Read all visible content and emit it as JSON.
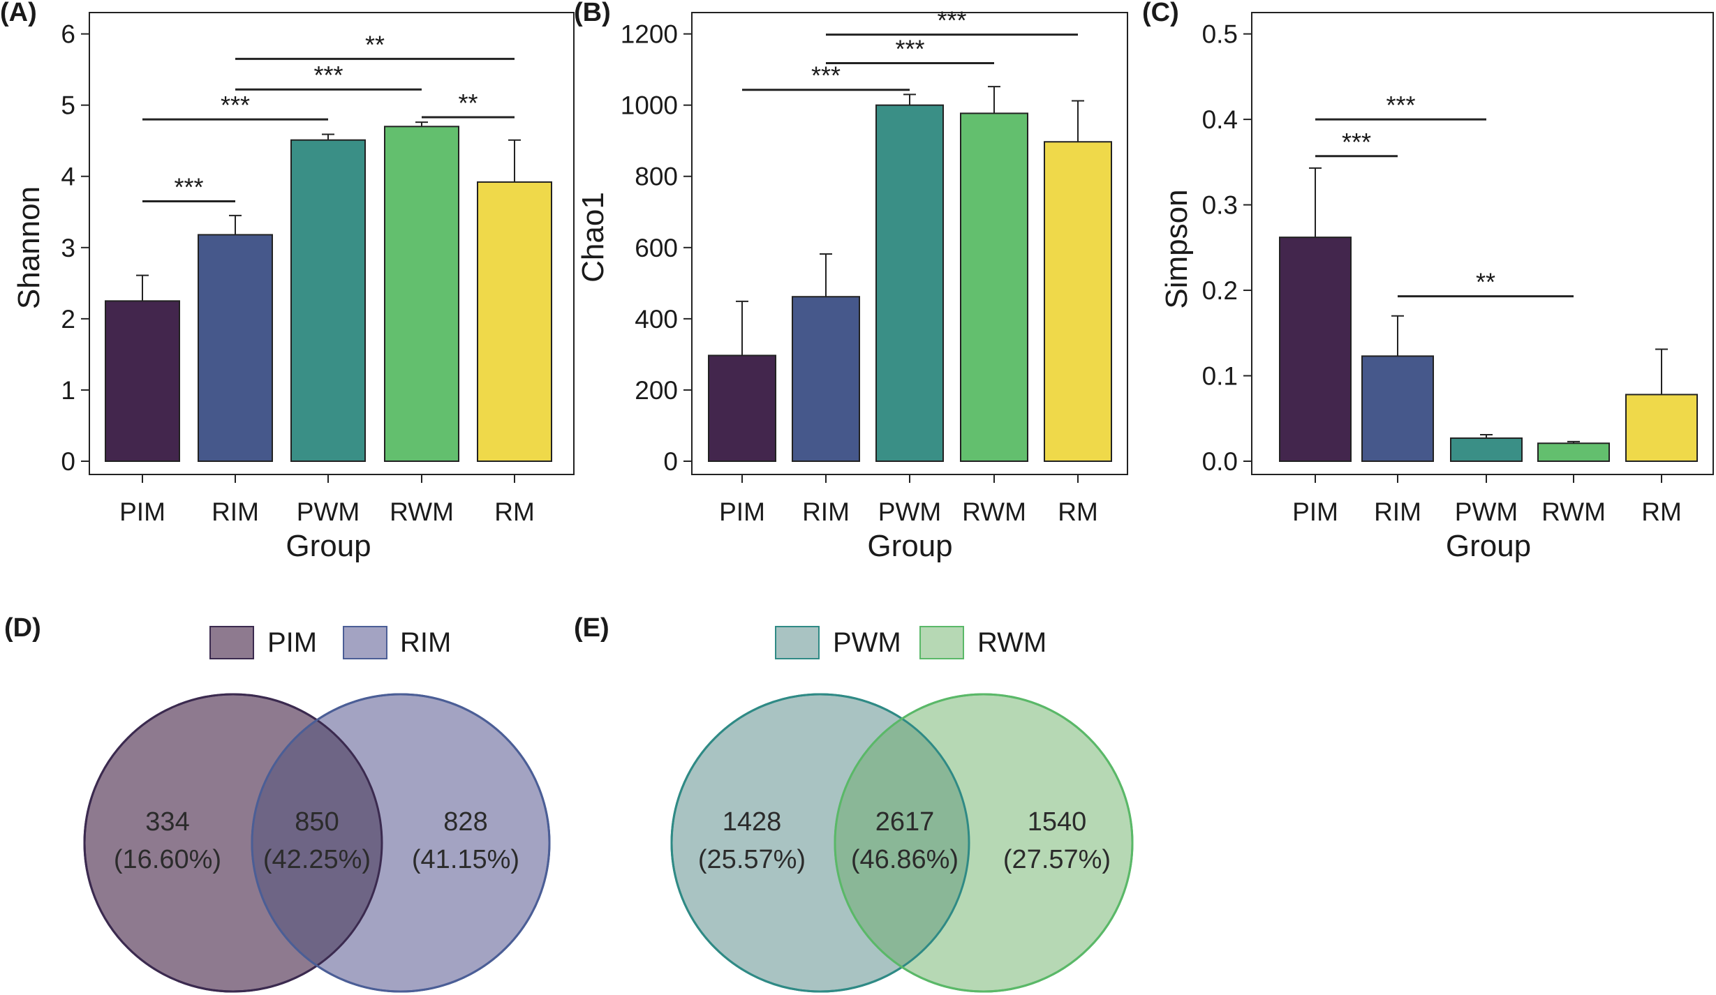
{
  "colors": {
    "PIM": "#43264d",
    "RIM": "#46588b",
    "PWM": "#3a8f86",
    "RWM": "#63bf6e",
    "RM": "#efd94a",
    "venn_PIM": "#8e7a8f",
    "venn_RIM": "#a3a3c2",
    "venn_PWM": "#a9c3c2",
    "venn_RWM": "#b6d8b4",
    "venn_overlap_1": "#6e6585",
    "venn_overlap_2": "#8ab797",
    "venn_PIM_stroke": "#3b2a4f",
    "venn_RIM_stroke": "#4b5e96",
    "venn_PWM_stroke": "#2f8a85",
    "venn_RWM_stroke": "#5ab868"
  },
  "chart_data": [
    {
      "panel": "(A)",
      "type": "bar",
      "categories": [
        "PIM",
        "RIM",
        "PWM",
        "RWM",
        "RM"
      ],
      "values": [
        2.25,
        3.18,
        4.51,
        4.7,
        3.92
      ],
      "errors": [
        0.36,
        0.27,
        0.08,
        0.06,
        0.59
      ],
      "xlabel": "Group",
      "ylabel": "Shannon",
      "ylim": [
        0,
        6.3
      ],
      "yticks": [
        0,
        1,
        2,
        3,
        4,
        5,
        6
      ],
      "ytick_labels": [
        "0",
        "1",
        "2",
        "3",
        "4",
        "5",
        "6"
      ],
      "significance": [
        {
          "from": 0,
          "to": 1,
          "y": 3.65,
          "label": "***"
        },
        {
          "from": 0,
          "to": 2,
          "y": 4.8,
          "label": "***"
        },
        {
          "from": 1,
          "to": 3,
          "y": 5.22,
          "label": "***"
        },
        {
          "from": 1,
          "to": 4,
          "y": 5.65,
          "label": "**"
        },
        {
          "from": 3,
          "to": 4,
          "y": 4.83,
          "label": "**"
        }
      ]
    },
    {
      "panel": "(B)",
      "type": "bar",
      "categories": [
        "PIM",
        "RIM",
        "PWM",
        "RWM",
        "RM"
      ],
      "values": [
        297,
        462,
        1000,
        977,
        897
      ],
      "errors": [
        152,
        120,
        30,
        75,
        115
      ],
      "xlabel": "Group",
      "ylabel": "Chao1",
      "ylim": [
        0,
        1260
      ],
      "yticks": [
        0,
        200,
        400,
        600,
        800,
        1000,
        1200
      ],
      "ytick_labels": [
        "0",
        "200",
        "400",
        "600",
        "800",
        "1000",
        "1200"
      ],
      "significance": [
        {
          "from": 0,
          "to": 2,
          "y": 1043,
          "label": "***"
        },
        {
          "from": 1,
          "to": 3,
          "y": 1118,
          "label": "***"
        },
        {
          "from": 1,
          "to": 4,
          "y": 1198,
          "label": "***"
        }
      ]
    },
    {
      "panel": "(C)",
      "type": "bar",
      "categories": [
        "PIM",
        "RIM",
        "PWM",
        "RWM",
        "RM"
      ],
      "values": [
        0.262,
        0.123,
        0.027,
        0.021,
        0.078
      ],
      "errors": [
        0.081,
        0.047,
        0.004,
        0.002,
        0.053
      ],
      "xlabel": "Group",
      "ylabel": "Simpson",
      "ylim": [
        0,
        0.525
      ],
      "yticks": [
        0,
        0.1,
        0.2,
        0.3,
        0.4,
        0.5
      ],
      "ytick_labels": [
        "0.0",
        "0.1",
        "0.2",
        "0.3",
        "0.4",
        "0.5"
      ],
      "significance": [
        {
          "from": 0,
          "to": 1,
          "y": 0.357,
          "label": "***"
        },
        {
          "from": 0,
          "to": 2,
          "y": 0.4,
          "label": "***"
        },
        {
          "from": 1,
          "to": 3,
          "y": 0.193,
          "label": "**"
        }
      ]
    },
    {
      "panel": "(D)",
      "type": "venn",
      "sets": [
        "PIM",
        "RIM"
      ],
      "regions": [
        {
          "set": "PIM",
          "count": "334",
          "percent": "(16.60%)"
        },
        {
          "set": "PIM∩RIM",
          "count": "850",
          "percent": "(42.25%)"
        },
        {
          "set": "RIM",
          "count": "828",
          "percent": "(41.15%)"
        }
      ]
    },
    {
      "panel": "(E)",
      "type": "venn",
      "sets": [
        "PWM",
        "RWM"
      ],
      "regions": [
        {
          "set": "PWM",
          "count": "1428",
          "percent": "(25.57%)"
        },
        {
          "set": "PWM∩RWM",
          "count": "2617",
          "percent": "(46.86%)"
        },
        {
          "set": "RWM",
          "count": "1540",
          "percent": "(27.57%)"
        }
      ]
    }
  ]
}
